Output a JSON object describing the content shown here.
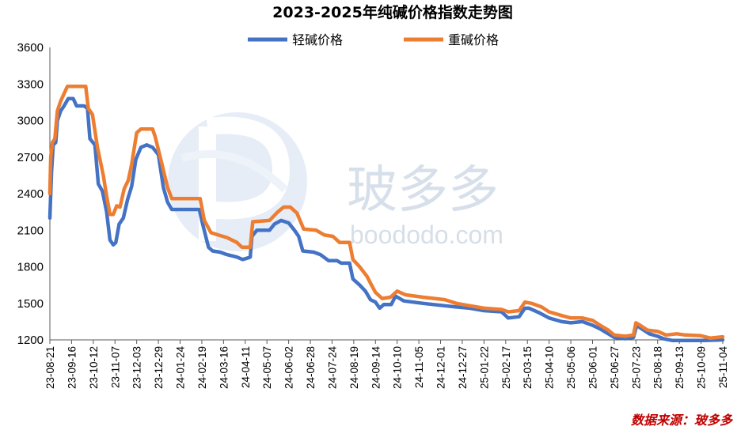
{
  "chart_data": {
    "type": "line",
    "title": "2023-2025年纯碱价格指数走势图",
    "xlabel": "",
    "ylabel": "",
    "ylim": [
      1200,
      3600
    ],
    "yticks": [
      1200,
      1500,
      1800,
      2100,
      2400,
      2700,
      3000,
      3300,
      3600
    ],
    "xticks": [
      "23-08-21",
      "23-09-16",
      "23-10-12",
      "23-11-07",
      "23-12-03",
      "23-12-29",
      "24-01-24",
      "24-02-19",
      "24-03-16",
      "24-04-11",
      "24-05-07",
      "24-06-02",
      "24-06-28",
      "24-07-24",
      "24-08-19",
      "24-09-14",
      "24-10-10",
      "24-11-05",
      "24-12-01",
      "24-12-27",
      "25-01-22",
      "25-02-17",
      "25-03-15",
      "25-04-10",
      "25-05-06",
      "25-06-01",
      "25-06-27",
      "25-07-23",
      "25-08-18",
      "25-09-13",
      "25-10-09",
      "25-11-04"
    ],
    "grid": false,
    "legend_position": "top-center",
    "x_start": "2023-08-21",
    "x_end": "2025-11-04",
    "series": [
      {
        "name": "轻碱价格",
        "color": "#4472c4",
        "points": [
          [
            "2023-08-21",
            2200
          ],
          [
            "2023-08-23",
            2580
          ],
          [
            "2023-08-25",
            2800
          ],
          [
            "2023-08-28",
            2820
          ],
          [
            "2023-08-30",
            3000
          ],
          [
            "2023-09-03",
            3080
          ],
          [
            "2023-09-07",
            3120
          ],
          [
            "2023-09-12",
            3180
          ],
          [
            "2023-09-18",
            3180
          ],
          [
            "2023-09-22",
            3120
          ],
          [
            "2023-10-01",
            3120
          ],
          [
            "2023-10-05",
            3100
          ],
          [
            "2023-10-08",
            2850
          ],
          [
            "2023-10-14",
            2800
          ],
          [
            "2023-10-18",
            2480
          ],
          [
            "2023-10-23",
            2420
          ],
          [
            "2023-10-28",
            2250
          ],
          [
            "2023-11-01",
            2020
          ],
          [
            "2023-11-05",
            1980
          ],
          [
            "2023-11-08",
            2000
          ],
          [
            "2023-11-12",
            2150
          ],
          [
            "2023-11-17",
            2200
          ],
          [
            "2023-11-22",
            2350
          ],
          [
            "2023-11-27",
            2460
          ],
          [
            "2023-12-02",
            2680
          ],
          [
            "2023-12-08",
            2780
          ],
          [
            "2023-12-15",
            2800
          ],
          [
            "2023-12-22",
            2780
          ],
          [
            "2023-12-29",
            2720
          ],
          [
            "2024-01-04",
            2450
          ],
          [
            "2024-01-09",
            2330
          ],
          [
            "2024-01-14",
            2270
          ],
          [
            "2024-02-02",
            2270
          ],
          [
            "2024-02-16",
            2270
          ],
          [
            "2024-02-20",
            2150
          ],
          [
            "2024-02-27",
            1960
          ],
          [
            "2024-03-03",
            1930
          ],
          [
            "2024-03-12",
            1920
          ],
          [
            "2024-03-20",
            1900
          ],
          [
            "2024-04-01",
            1880
          ],
          [
            "2024-04-08",
            1860
          ],
          [
            "2024-04-13",
            1870
          ],
          [
            "2024-04-17",
            1880
          ],
          [
            "2024-04-19",
            2050
          ],
          [
            "2024-04-25",
            2100
          ],
          [
            "2024-05-10",
            2100
          ],
          [
            "2024-05-16",
            2150
          ],
          [
            "2024-05-24",
            2180
          ],
          [
            "2024-06-02",
            2160
          ],
          [
            "2024-06-09",
            2100
          ],
          [
            "2024-06-14",
            2050
          ],
          [
            "2024-06-19",
            1930
          ],
          [
            "2024-07-02",
            1920
          ],
          [
            "2024-07-10",
            1900
          ],
          [
            "2024-07-20",
            1850
          ],
          [
            "2024-07-30",
            1850
          ],
          [
            "2024-08-04",
            1830
          ],
          [
            "2024-08-14",
            1830
          ],
          [
            "2024-08-18",
            1700
          ],
          [
            "2024-08-26",
            1650
          ],
          [
            "2024-09-02",
            1600
          ],
          [
            "2024-09-08",
            1530
          ],
          [
            "2024-09-14",
            1510
          ],
          [
            "2024-09-19",
            1460
          ],
          [
            "2024-09-24",
            1490
          ],
          [
            "2024-10-03",
            1490
          ],
          [
            "2024-10-08",
            1560
          ],
          [
            "2024-10-18",
            1520
          ],
          [
            "2024-11-10",
            1500
          ],
          [
            "2024-12-06",
            1480
          ],
          [
            "2024-12-20",
            1470
          ],
          [
            "2025-01-05",
            1460
          ],
          [
            "2025-01-22",
            1440
          ],
          [
            "2025-02-12",
            1430
          ],
          [
            "2025-02-20",
            1380
          ],
          [
            "2025-03-05",
            1390
          ],
          [
            "2025-03-12",
            1460
          ],
          [
            "2025-03-17",
            1460
          ],
          [
            "2025-03-30",
            1420
          ],
          [
            "2025-04-10",
            1380
          ],
          [
            "2025-04-25",
            1350
          ],
          [
            "2025-05-06",
            1340
          ],
          [
            "2025-05-20",
            1350
          ],
          [
            "2025-06-01",
            1320
          ],
          [
            "2025-06-10",
            1290
          ],
          [
            "2025-06-20",
            1250
          ],
          [
            "2025-06-27",
            1220
          ],
          [
            "2025-07-10",
            1210
          ],
          [
            "2025-07-20",
            1220
          ],
          [
            "2025-07-24",
            1320
          ],
          [
            "2025-07-28",
            1300
          ],
          [
            "2025-08-08",
            1250
          ],
          [
            "2025-08-18",
            1230
          ],
          [
            "2025-08-25",
            1210
          ],
          [
            "2025-09-05",
            1195
          ],
          [
            "2025-09-20",
            1195
          ],
          [
            "2025-10-10",
            1195
          ],
          [
            "2025-11-04",
            1200
          ]
        ]
      },
      {
        "name": "重碱价格",
        "color": "#ed7d31",
        "points": [
          [
            "2023-08-21",
            2400
          ],
          [
            "2023-08-22",
            2700
          ],
          [
            "2023-08-24",
            2820
          ],
          [
            "2023-08-27",
            2850
          ],
          [
            "2023-08-30",
            3080
          ],
          [
            "2023-09-03",
            3160
          ],
          [
            "2023-09-07",
            3220
          ],
          [
            "2023-09-11",
            3280
          ],
          [
            "2023-09-20",
            3280
          ],
          [
            "2023-10-03",
            3280
          ],
          [
            "2023-10-06",
            3100
          ],
          [
            "2023-10-11",
            3050
          ],
          [
            "2023-10-17",
            2780
          ],
          [
            "2023-10-24",
            2550
          ],
          [
            "2023-10-28",
            2380
          ],
          [
            "2023-11-01",
            2230
          ],
          [
            "2023-11-05",
            2230
          ],
          [
            "2023-11-09",
            2300
          ],
          [
            "2023-11-13",
            2290
          ],
          [
            "2023-11-18",
            2440
          ],
          [
            "2023-11-23",
            2510
          ],
          [
            "2023-11-27",
            2640
          ],
          [
            "2023-12-03",
            2900
          ],
          [
            "2023-12-08",
            2930
          ],
          [
            "2023-12-22",
            2930
          ],
          [
            "2023-12-25",
            2870
          ],
          [
            "2024-01-02",
            2650
          ],
          [
            "2024-01-09",
            2450
          ],
          [
            "2024-01-14",
            2360
          ],
          [
            "2024-02-01",
            2360
          ],
          [
            "2024-02-17",
            2360
          ],
          [
            "2024-02-22",
            2180
          ],
          [
            "2024-03-01",
            2080
          ],
          [
            "2024-03-10",
            2060
          ],
          [
            "2024-03-20",
            2040
          ],
          [
            "2024-04-01",
            2000
          ],
          [
            "2024-04-07",
            1960
          ],
          [
            "2024-04-17",
            1960
          ],
          [
            "2024-04-20",
            2170
          ],
          [
            "2024-05-10",
            2180
          ],
          [
            "2024-05-20",
            2250
          ],
          [
            "2024-05-27",
            2290
          ],
          [
            "2024-06-04",
            2290
          ],
          [
            "2024-06-12",
            2240
          ],
          [
            "2024-06-20",
            2110
          ],
          [
            "2024-07-05",
            2100
          ],
          [
            "2024-07-15",
            2060
          ],
          [
            "2024-07-25",
            2050
          ],
          [
            "2024-08-02",
            2000
          ],
          [
            "2024-08-14",
            2000
          ],
          [
            "2024-08-18",
            1860
          ],
          [
            "2024-08-26",
            1800
          ],
          [
            "2024-09-04",
            1720
          ],
          [
            "2024-09-10",
            1640
          ],
          [
            "2024-09-14",
            1590
          ],
          [
            "2024-09-22",
            1540
          ],
          [
            "2024-10-02",
            1550
          ],
          [
            "2024-10-10",
            1600
          ],
          [
            "2024-10-20",
            1570
          ],
          [
            "2024-11-10",
            1550
          ],
          [
            "2024-12-06",
            1530
          ],
          [
            "2024-12-20",
            1500
          ],
          [
            "2025-01-05",
            1480
          ],
          [
            "2025-01-22",
            1460
          ],
          [
            "2025-02-12",
            1450
          ],
          [
            "2025-02-20",
            1430
          ],
          [
            "2025-03-05",
            1440
          ],
          [
            "2025-03-12",
            1510
          ],
          [
            "2025-03-20",
            1500
          ],
          [
            "2025-04-01",
            1470
          ],
          [
            "2025-04-10",
            1430
          ],
          [
            "2025-04-25",
            1400
          ],
          [
            "2025-05-06",
            1380
          ],
          [
            "2025-05-20",
            1380
          ],
          [
            "2025-06-01",
            1360
          ],
          [
            "2025-06-10",
            1320
          ],
          [
            "2025-06-20",
            1280
          ],
          [
            "2025-06-27",
            1240
          ],
          [
            "2025-07-10",
            1230
          ],
          [
            "2025-07-20",
            1240
          ],
          [
            "2025-07-23",
            1340
          ],
          [
            "2025-07-28",
            1320
          ],
          [
            "2025-08-06",
            1280
          ],
          [
            "2025-08-18",
            1270
          ],
          [
            "2025-08-28",
            1240
          ],
          [
            "2025-09-10",
            1250
          ],
          [
            "2025-09-20",
            1240
          ],
          [
            "2025-10-08",
            1235
          ],
          [
            "2025-10-20",
            1215
          ],
          [
            "2025-11-04",
            1225
          ]
        ]
      }
    ]
  },
  "watermark": {
    "chinese": "玻多多",
    "english": "boododo.com"
  },
  "source_note": "数据来源：玻多多",
  "colors": {
    "light": "#4472c4",
    "heavy": "#ed7d31",
    "source": "#c00000"
  }
}
